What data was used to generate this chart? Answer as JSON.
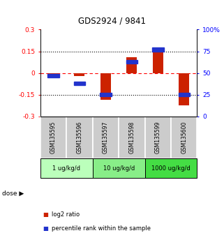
{
  "title": "GDS2924 / 9841",
  "samples": [
    "GSM135595",
    "GSM135596",
    "GSM135597",
    "GSM135598",
    "GSM135599",
    "GSM135600"
  ],
  "log2_ratios": [
    -0.01,
    -0.02,
    -0.185,
    0.11,
    0.155,
    -0.225
  ],
  "percentile_ranks": [
    47,
    38,
    25,
    63,
    77,
    25
  ],
  "dose_groups": [
    {
      "label": "1 ug/kg/d",
      "start": 0,
      "end": 2,
      "color": "#bbffbb"
    },
    {
      "label": "10 ug/kg/d",
      "start": 2,
      "end": 4,
      "color": "#88ee88"
    },
    {
      "label": "1000 ug/kg/d",
      "start": 4,
      "end": 6,
      "color": "#44dd44"
    }
  ],
  "ylim_left": [
    -0.3,
    0.3
  ],
  "ylim_right": [
    0,
    100
  ],
  "yticks_left": [
    -0.3,
    -0.15,
    0,
    0.15,
    0.3
  ],
  "ytick_labels_left": [
    "-0.3",
    "-0.15",
    "0",
    "0.15",
    "0.3"
  ],
  "yticks_right": [
    0,
    25,
    50,
    75,
    100
  ],
  "ytick_labels_right": [
    "0",
    "25",
    "50",
    "75",
    "100%"
  ],
  "bar_color": "#CC2200",
  "square_color": "#2233CC",
  "bar_width": 0.4,
  "bg_color": "#ffffff",
  "sample_box_color": "#cccccc",
  "legend_red_label": "log2 ratio",
  "legend_blue_label": "percentile rank within the sample",
  "dose_label": "dose"
}
